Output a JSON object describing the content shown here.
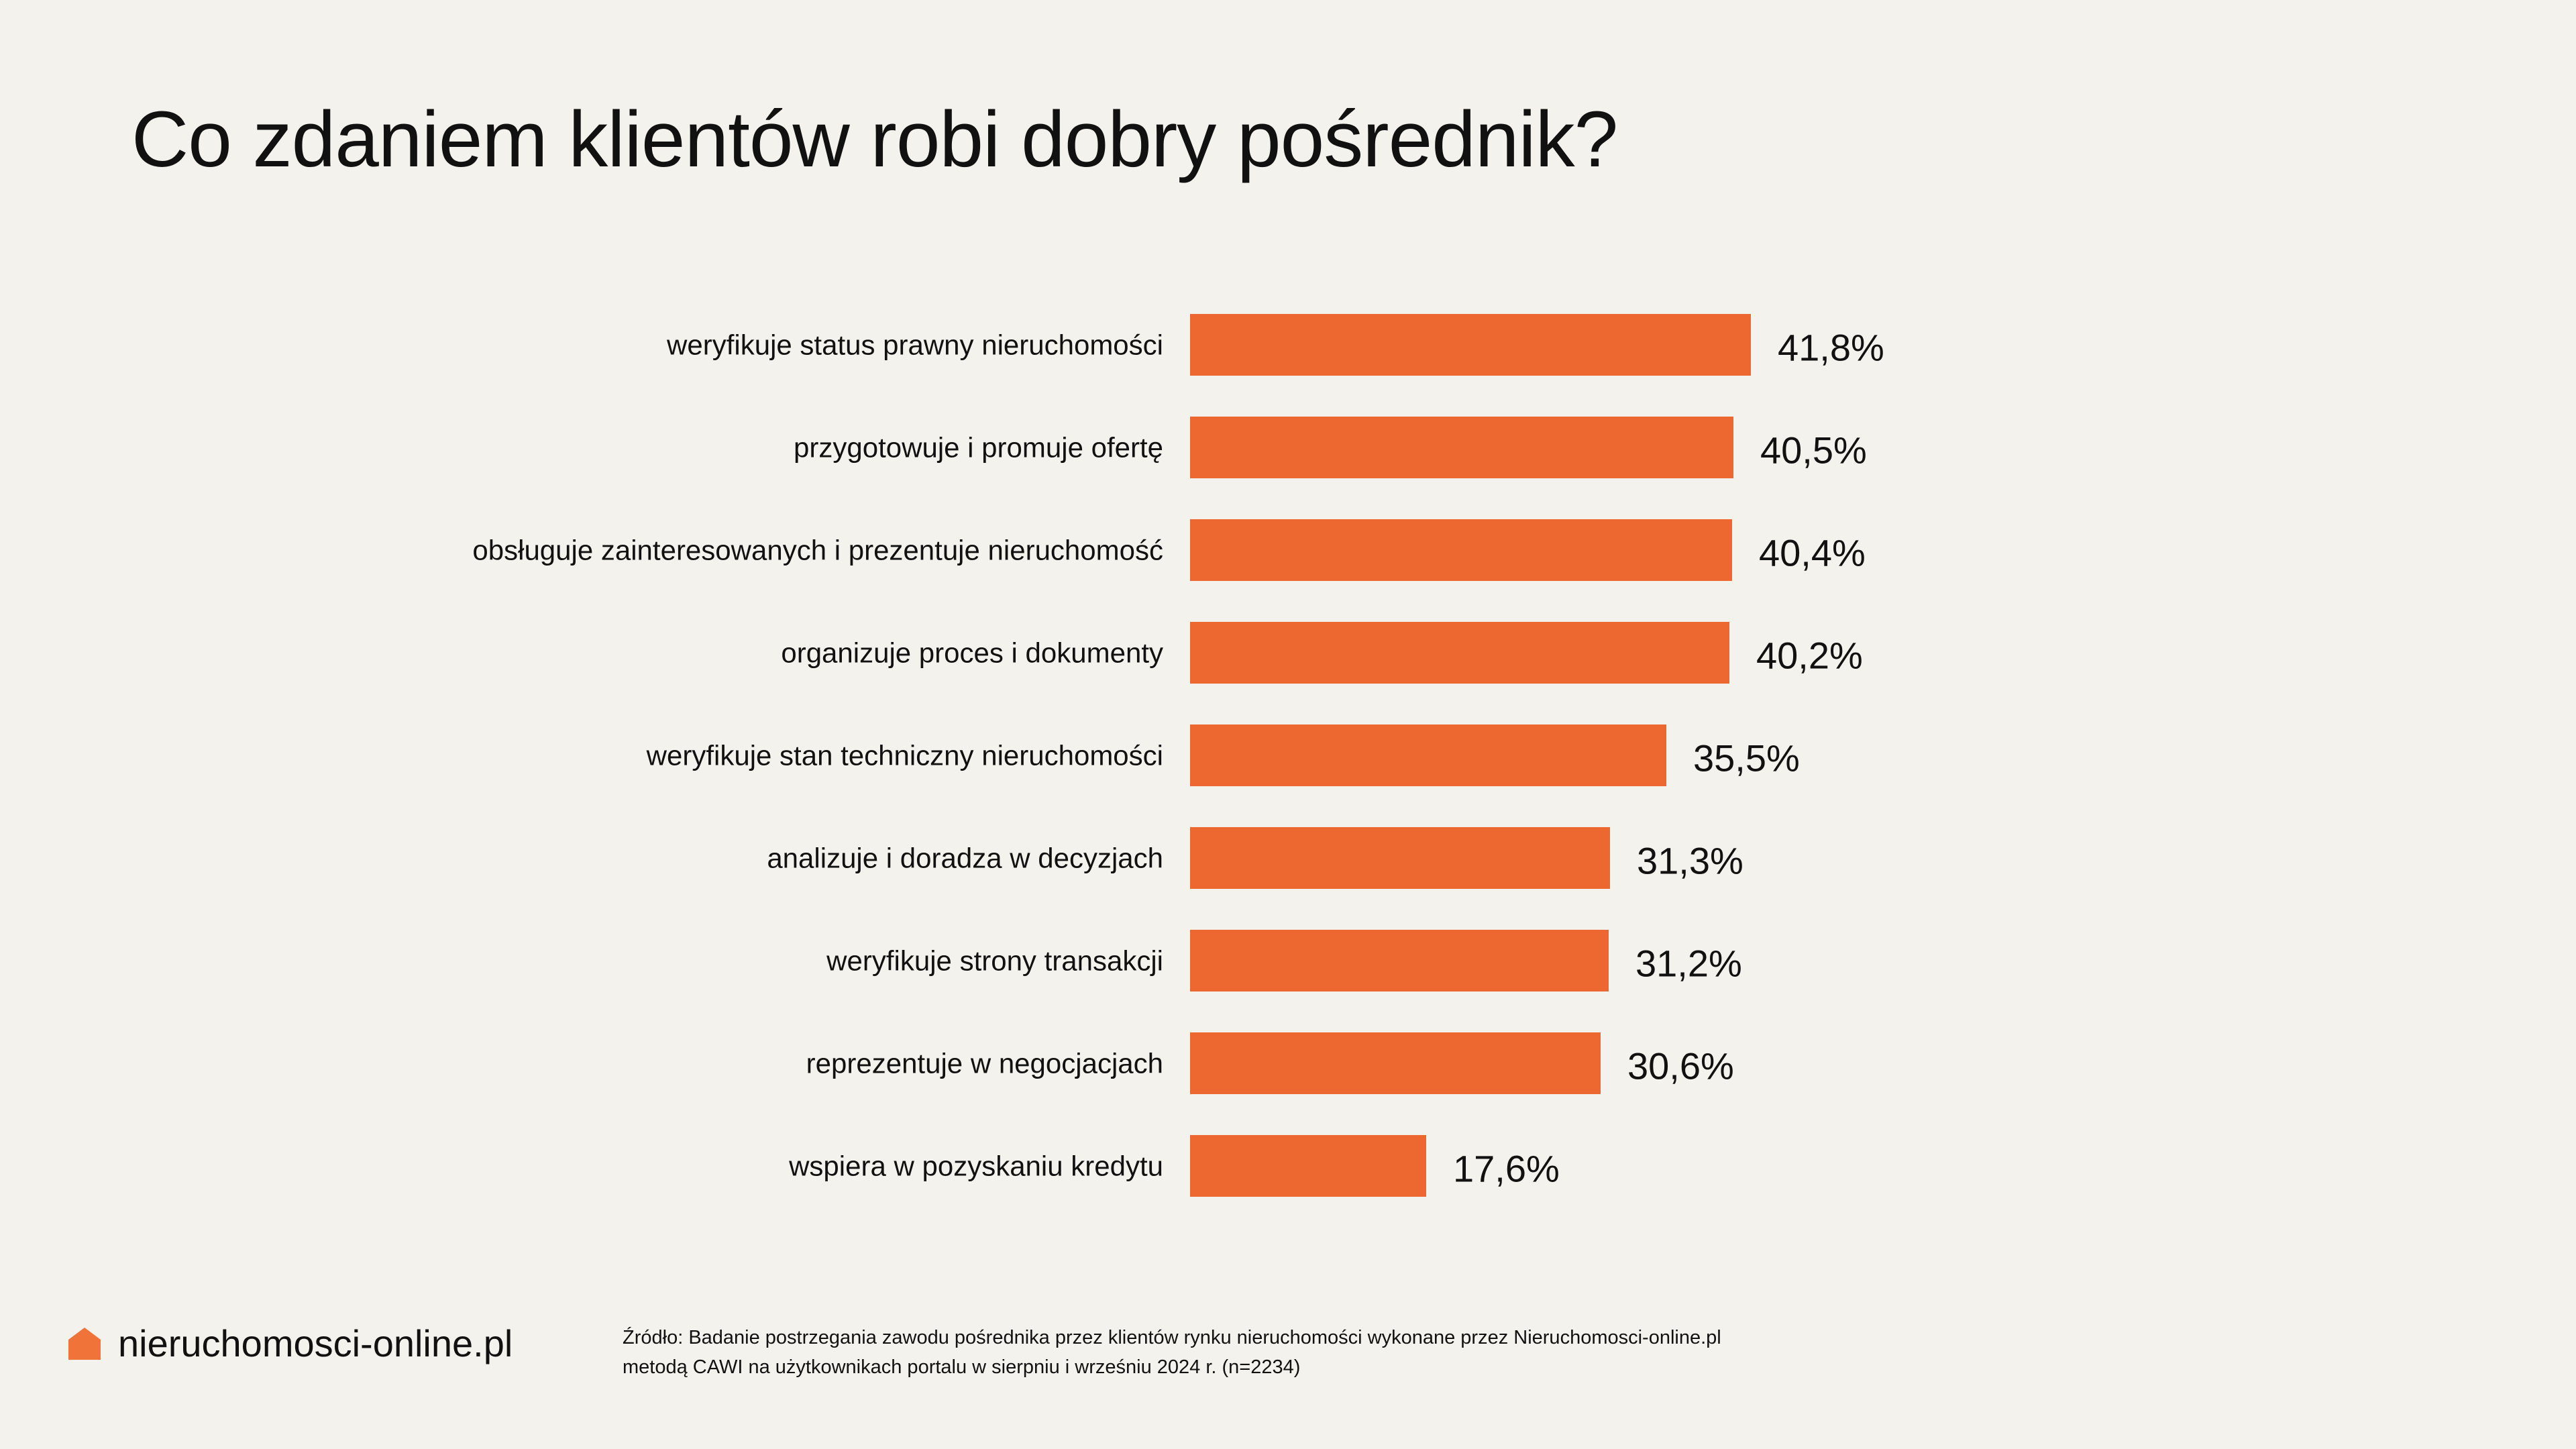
{
  "chart_data": {
    "type": "bar",
    "orientation": "horizontal",
    "title": "Co zdaniem klientów robi dobry pośrednik?",
    "categories": [
      "weryfikuje status prawny nieruchomości",
      "przygotowuje i promuje ofertę",
      "obsługuje zainteresowanych i prezentuje nieruchomość",
      "organizuje proces i dokumenty",
      "weryfikuje stan techniczny nieruchomości",
      "analizuje i doradza w decyzjach",
      "weryfikuje strony transakcji",
      "reprezentuje w negocjacjach",
      "wspiera w pozyskaniu kredytu"
    ],
    "values": [
      41.8,
      40.5,
      40.4,
      40.2,
      35.5,
      31.3,
      31.2,
      30.6,
      17.6
    ],
    "value_labels": [
      "41,8%",
      "40,5%",
      "40,4%",
      "40,2%",
      "35,5%",
      "31,3%",
      "31,2%",
      "30,6%",
      "17,6%"
    ],
    "xlim": [
      0,
      100
    ],
    "grid": false,
    "legend": "none",
    "bar_color": "#ec6830"
  },
  "brand": {
    "logo_icon": "house-icon",
    "logo_color": "#f0743a",
    "logo_text": "nieruchomosci-online.pl"
  },
  "source": {
    "line1": "Źródło: Badanie postrzegania zawodu pośrednika przez klientów rynku nieruchomości wykonane przez Nieruchomosci-online.pl",
    "line2": "metodą CAWI na użytkownikach portalu w sierpniu i wrześniu 2024 r.  (n=2234)"
  }
}
